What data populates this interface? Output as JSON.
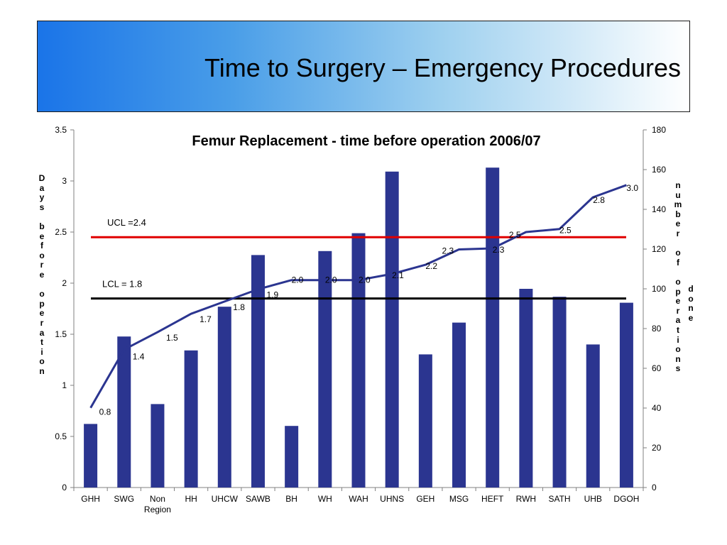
{
  "page": {
    "title": "Time to Surgery – Emergency Procedures"
  },
  "chart_data": {
    "type": "bar",
    "title": "Femur Replacement - time before operation 2006/07",
    "categories": [
      "GHH",
      "SWG",
      "Non Region",
      "HH",
      "UHCW",
      "SAWB",
      "BH",
      "WH",
      "WAH",
      "UHNS",
      "GEH",
      "MSG",
      "HEFT",
      "RWH",
      "SATH",
      "UHB",
      "DGOH"
    ],
    "category_lines": [
      [
        "GHH"
      ],
      [
        "SWG"
      ],
      [
        "Non",
        "Region"
      ],
      [
        "HH"
      ],
      [
        "UHCW"
      ],
      [
        "SAWB"
      ],
      [
        "BH"
      ],
      [
        "WH"
      ],
      [
        "WAH"
      ],
      [
        "UHNS"
      ],
      [
        "GEH"
      ],
      [
        "MSG"
      ],
      [
        "HEFT"
      ],
      [
        "RWH"
      ],
      [
        "SATH"
      ],
      [
        "UHB"
      ],
      [
        "DGOH"
      ]
    ],
    "bar_series": {
      "axis": "right",
      "color": "#2b3590",
      "values": [
        32,
        76,
        42,
        69,
        91,
        117,
        31,
        119,
        128,
        159,
        67,
        83,
        161,
        100,
        96,
        72,
        93
      ]
    },
    "line_series": {
      "axis": "left",
      "color": "#2b3590",
      "values": [
        0.78,
        1.35,
        1.52,
        1.7,
        1.82,
        1.94,
        2.03,
        2.03,
        2.03,
        2.09,
        2.18,
        2.33,
        2.34,
        2.5,
        2.53,
        2.84,
        2.96
      ],
      "labels": [
        "0.8",
        "1.4",
        "1.5",
        "1.7",
        "1.8",
        "1.9",
        "2.0",
        "2.0",
        "2.0",
        "2.1",
        "2.2",
        "2.3",
        "2.3",
        "2.5",
        "2.5",
        "2.8",
        "3.0"
      ]
    },
    "reference_lines": [
      {
        "label": "UCL =2.4",
        "value": 2.45,
        "color": "#e00000"
      },
      {
        "label": "LCL = 1.8",
        "value": 1.85,
        "color": "#000000"
      }
    ],
    "y_left": {
      "label": "Days before operation",
      "min": 0,
      "max": 3.5,
      "ticks": [
        "0",
        "0.5",
        "1",
        "1.5",
        "2",
        "2.5",
        "3",
        "3.5"
      ]
    },
    "y_right": {
      "label": "number of operations done",
      "min": 0,
      "max": 180,
      "ticks": [
        "0",
        "20",
        "40",
        "60",
        "80",
        "100",
        "120",
        "140",
        "160",
        "180"
      ]
    }
  }
}
